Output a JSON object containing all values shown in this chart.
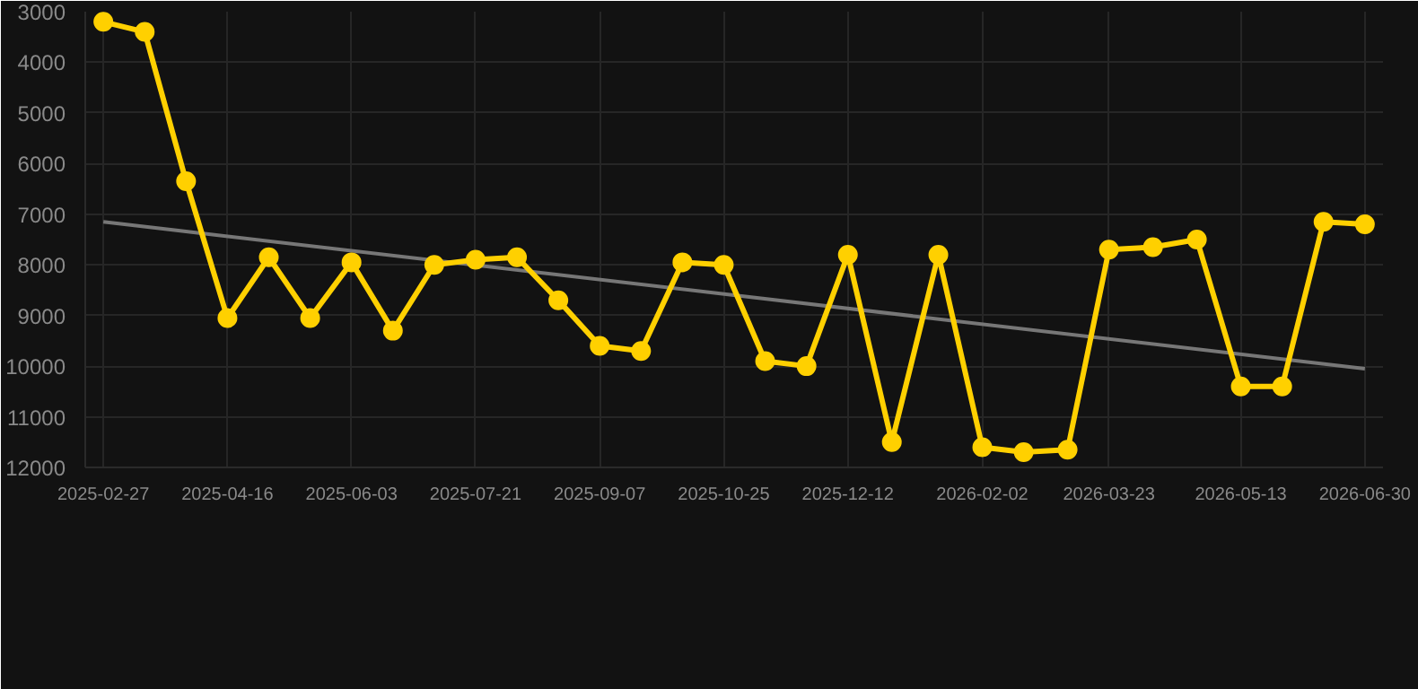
{
  "chart_data": {
    "type": "line",
    "x": [
      "2025-02-27",
      "2025-03-15",
      "2025-03-31",
      "2025-04-16",
      "2025-05-02",
      "2025-05-18",
      "2025-06-03",
      "2025-06-19",
      "2025-07-05",
      "2025-07-21",
      "2025-08-06",
      "2025-08-22",
      "2025-09-07",
      "2025-09-23",
      "2025-10-09",
      "2025-10-25",
      "2025-11-10",
      "2025-11-26",
      "2025-12-12",
      "2025-12-29",
      "2026-01-16",
      "2026-02-02",
      "2026-02-18",
      "2026-03-07",
      "2026-03-23",
      "2026-04-09",
      "2026-04-26",
      "2026-05-13",
      "2026-05-29",
      "2026-06-14",
      "2026-06-30"
    ],
    "series": [
      {
        "color": "#ffd000",
        "marker": "circle",
        "values": [
          3200,
          3400,
          6350,
          9050,
          7850,
          9050,
          7950,
          9300,
          8000,
          7900,
          7850,
          8700,
          9600,
          9700,
          7950,
          8000,
          9900,
          10000,
          7800,
          11500,
          7800,
          11600,
          11700,
          11650,
          7700,
          7650,
          7500,
          10400,
          10400,
          7150,
          7200
        ]
      },
      {
        "color": "#777777",
        "marker": "none",
        "x": [
          "2025-02-27",
          "2026-06-30"
        ],
        "values": [
          7150,
          10050
        ]
      }
    ],
    "xlim": [
      "2025-02-20",
      "2026-07-07"
    ],
    "xticks": [
      "2025-02-27",
      "2025-04-16",
      "2025-06-03",
      "2025-07-21",
      "2025-09-07",
      "2025-10-25",
      "2025-12-12",
      "2026-02-02",
      "2026-03-23",
      "2026-05-13",
      "2026-06-30"
    ],
    "ylim": [
      12000,
      3000
    ],
    "yticks": [
      3000,
      4000,
      5000,
      6000,
      7000,
      8000,
      9000,
      10000,
      11000,
      12000
    ],
    "grid": true
  }
}
